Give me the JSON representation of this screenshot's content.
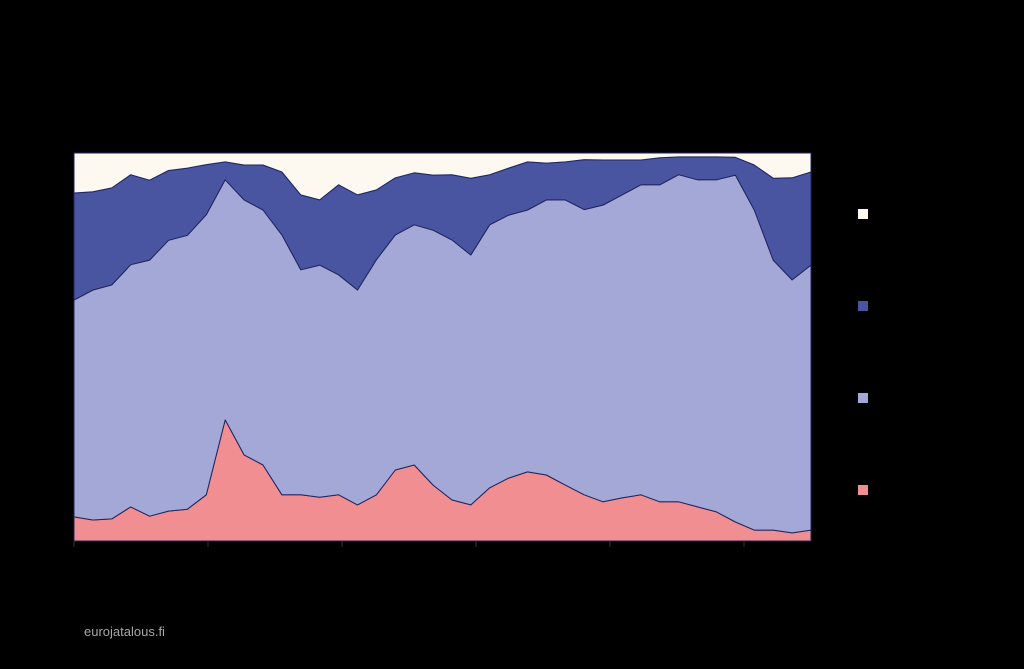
{
  "chart_data": {
    "type": "stacked-area",
    "source": "eurojatalous.fi",
    "ylim": [
      0,
      100
    ],
    "series": [
      {
        "color": "#f08e92",
        "values": [
          6.2,
          5.4,
          5.7,
          8.8,
          6.4,
          7.7,
          8.2,
          11.9,
          31.2,
          22.2,
          19.6,
          11.9,
          11.9,
          11.3,
          11.9,
          9.3,
          11.9,
          18.3,
          19.6,
          14.4,
          10.6,
          9.3,
          13.7,
          16.2,
          17.8,
          17.0,
          14.4,
          11.9,
          10.1,
          11.1,
          11.9,
          10.1,
          10.1,
          8.8,
          7.5,
          4.9,
          2.8,
          2.8,
          2.1,
          2.8
        ]
      },
      {
        "color": "#a3a8d6",
        "values": [
          55.9,
          59.3,
          60.3,
          62.4,
          66.0,
          69.8,
          70.6,
          72.2,
          61.9,
          65.7,
          65.7,
          67.0,
          58.0,
          59.8,
          56.7,
          55.4,
          60.6,
          60.6,
          61.9,
          65.7,
          67.0,
          64.4,
          67.8,
          67.8,
          67.5,
          70.9,
          73.5,
          73.5,
          76.5,
          78.1,
          79.9,
          81.7,
          84.3,
          84.3,
          85.6,
          89.4,
          82.5,
          69.6,
          65.2,
          68.3
        ]
      },
      {
        "color": "#4a55a2",
        "values": [
          27.6,
          25.3,
          25.0,
          23.2,
          20.6,
          18.0,
          17.3,
          12.9,
          4.6,
          9.0,
          11.6,
          16.2,
          19.3,
          16.8,
          23.2,
          24.5,
          18.0,
          14.7,
          13.4,
          14.2,
          16.8,
          19.8,
          12.9,
          12.1,
          12.4,
          9.5,
          9.8,
          12.9,
          11.6,
          9.0,
          6.4,
          7.0,
          4.6,
          5.9,
          5.9,
          4.6,
          11.6,
          21.1,
          26.3,
          24.0
        ]
      },
      {
        "color": "#fdf8f0",
        "values": [
          10.3,
          10.0,
          9.0,
          5.6,
          7.0,
          4.5,
          3.9,
          3.0,
          2.3,
          3.1,
          3.1,
          4.9,
          10.8,
          12.1,
          8.2,
          10.8,
          9.5,
          6.4,
          5.1,
          5.7,
          5.6,
          6.5,
          5.6,
          3.9,
          2.3,
          2.6,
          2.3,
          1.7,
          1.8,
          1.8,
          1.8,
          1.2,
          1.0,
          1.0,
          1.0,
          1.1,
          3.1,
          6.5,
          6.4,
          4.9
        ]
      }
    ]
  }
}
